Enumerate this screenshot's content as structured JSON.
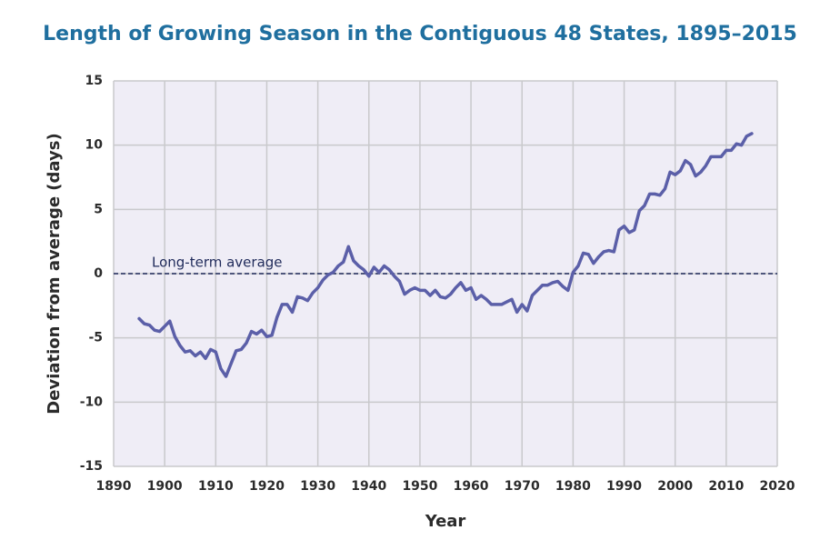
{
  "chart_data": {
    "type": "line",
    "title": "Length of Growing Season in the Contiguous 48 States, 1895–2015",
    "xlabel": "Year",
    "ylabel": "Deviation from average (days)",
    "x": [
      1895,
      1896,
      1897,
      1898,
      1899,
      1900,
      1901,
      1902,
      1903,
      1904,
      1905,
      1906,
      1907,
      1908,
      1909,
      1910,
      1911,
      1912,
      1913,
      1914,
      1915,
      1916,
      1917,
      1918,
      1919,
      1920,
      1921,
      1922,
      1923,
      1924,
      1925,
      1926,
      1927,
      1928,
      1929,
      1930,
      1931,
      1932,
      1933,
      1934,
      1935,
      1936,
      1937,
      1938,
      1939,
      1940,
      1941,
      1942,
      1943,
      1944,
      1945,
      1946,
      1947,
      1948,
      1949,
      1950,
      1951,
      1952,
      1953,
      1954,
      1955,
      1956,
      1957,
      1958,
      1959,
      1960,
      1961,
      1962,
      1963,
      1964,
      1965,
      1966,
      1967,
      1968,
      1969,
      1970,
      1971,
      1972,
      1973,
      1974,
      1975,
      1976,
      1977,
      1978,
      1979,
      1980,
      1981,
      1982,
      1983,
      1984,
      1985,
      1986,
      1987,
      1988,
      1989,
      1990,
      1991,
      1992,
      1993,
      1994,
      1995,
      1996,
      1997,
      1998,
      1999,
      2000,
      2001,
      2002,
      2003,
      2004,
      2005,
      2006,
      2007,
      2008,
      2009,
      2010,
      2011,
      2012,
      2013,
      2014,
      2015
    ],
    "values": [
      -3.5,
      -3.9,
      -4.0,
      -4.4,
      -4.5,
      -4.1,
      -3.7,
      -4.9,
      -5.6,
      -6.1,
      -6.0,
      -6.4,
      -6.1,
      -6.6,
      -5.9,
      -6.1,
      -7.4,
      -8.0,
      -7.0,
      -6.0,
      -5.9,
      -5.4,
      -4.5,
      -4.7,
      -4.4,
      -4.9,
      -4.8,
      -3.4,
      -2.4,
      -2.4,
      -3.0,
      -1.8,
      -1.9,
      -2.1,
      -1.5,
      -1.1,
      -0.5,
      -0.1,
      0.1,
      0.6,
      0.9,
      2.1,
      1.0,
      0.6,
      0.3,
      -0.2,
      0.5,
      0.1,
      0.6,
      0.3,
      -0.2,
      -0.6,
      -1.6,
      -1.3,
      -1.1,
      -1.3,
      -1.3,
      -1.7,
      -1.3,
      -1.8,
      -1.9,
      -1.6,
      -1.1,
      -0.7,
      -1.3,
      -1.1,
      -2.0,
      -1.7,
      -2.0,
      -2.4,
      -2.4,
      -2.4,
      -2.2,
      -2.0,
      -3.0,
      -2.4,
      -2.9,
      -1.7,
      -1.3,
      -0.9,
      -0.9,
      -0.7,
      -0.6,
      -1.0,
      -1.3,
      0.1,
      0.6,
      1.6,
      1.5,
      0.8,
      1.3,
      1.7,
      1.8,
      1.7,
      3.4,
      3.7,
      3.2,
      3.4,
      4.9,
      5.3,
      6.2,
      6.2,
      6.1,
      6.6,
      7.9,
      7.7,
      8.0,
      8.8,
      8.5,
      7.6,
      7.9,
      8.4,
      9.1,
      9.1,
      9.1,
      9.6,
      9.6,
      10.1,
      10.0,
      10.7,
      10.9
    ],
    "color": "#5b5fa8",
    "reference_line": {
      "value": 0,
      "label": "Long-term average"
    },
    "xlim": [
      1890,
      2020
    ],
    "xticks": [
      1890,
      1900,
      1910,
      1920,
      1930,
      1940,
      1950,
      1960,
      1970,
      1980,
      1990,
      2000,
      2010,
      2020
    ],
    "ylim": [
      -15,
      15
    ],
    "yticks": [
      -15,
      -10,
      -5,
      0,
      5,
      10,
      15
    ],
    "grid": true
  }
}
